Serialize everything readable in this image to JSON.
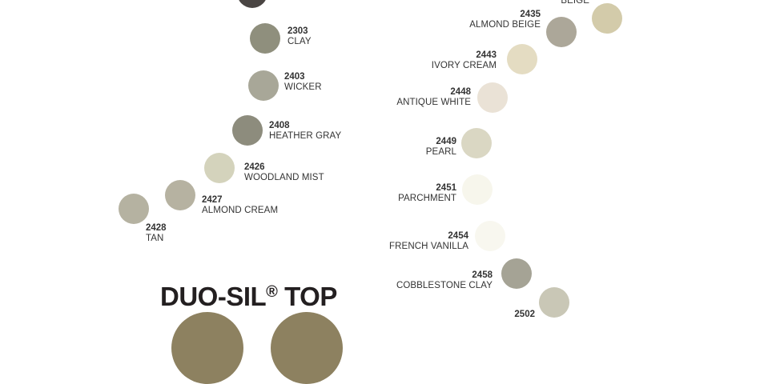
{
  "title_main": "DUO-SIL",
  "title_reg": "®",
  "title_suffix": " TOP",
  "left_column": [
    {
      "code": "2303",
      "name": "CLAY",
      "color": "#8f8f7d"
    },
    {
      "code": "2403",
      "name": "WICKER",
      "color": "#a8a798"
    },
    {
      "code": "2408",
      "name": "HEATHER GRAY",
      "color": "#8d8c7d"
    },
    {
      "code": "2426",
      "name": "WOODLAND MIST",
      "color": "#d4d3bc"
    },
    {
      "code": "2427",
      "name": "ALMOND CREAM",
      "color": "#b6b2a1"
    },
    {
      "code": "2428",
      "name": "TAN",
      "color": "#b5b2a1"
    }
  ],
  "right_column": [
    {
      "code": "",
      "name": "BEIGE",
      "color": "#d3cbaa"
    },
    {
      "code": "2435",
      "name": "ALMOND BEIGE",
      "color": "#aca799"
    },
    {
      "code": "2443",
      "name": "IVORY CREAM",
      "color": "#e4dcc2"
    },
    {
      "code": "2448",
      "name": "ANTIQUE WHITE",
      "color": "#eae2d6"
    },
    {
      "code": "2449",
      "name": "PEARL",
      "color": "#dad7c3"
    },
    {
      "code": "2451",
      "name": "PARCHMENT",
      "color": "#f7f6ec"
    },
    {
      "code": "2454",
      "name": "FRENCH VANILLA",
      "color": "#f8f7ef"
    },
    {
      "code": "2458",
      "name": "COBBLESTONE CLAY",
      "color": "#a5a395"
    },
    {
      "code": "2502",
      "name": "",
      "color": "#c9c7b6"
    }
  ],
  "top_swatch_color": "#4a4543",
  "bottom_swatch_color": "#8d8160"
}
